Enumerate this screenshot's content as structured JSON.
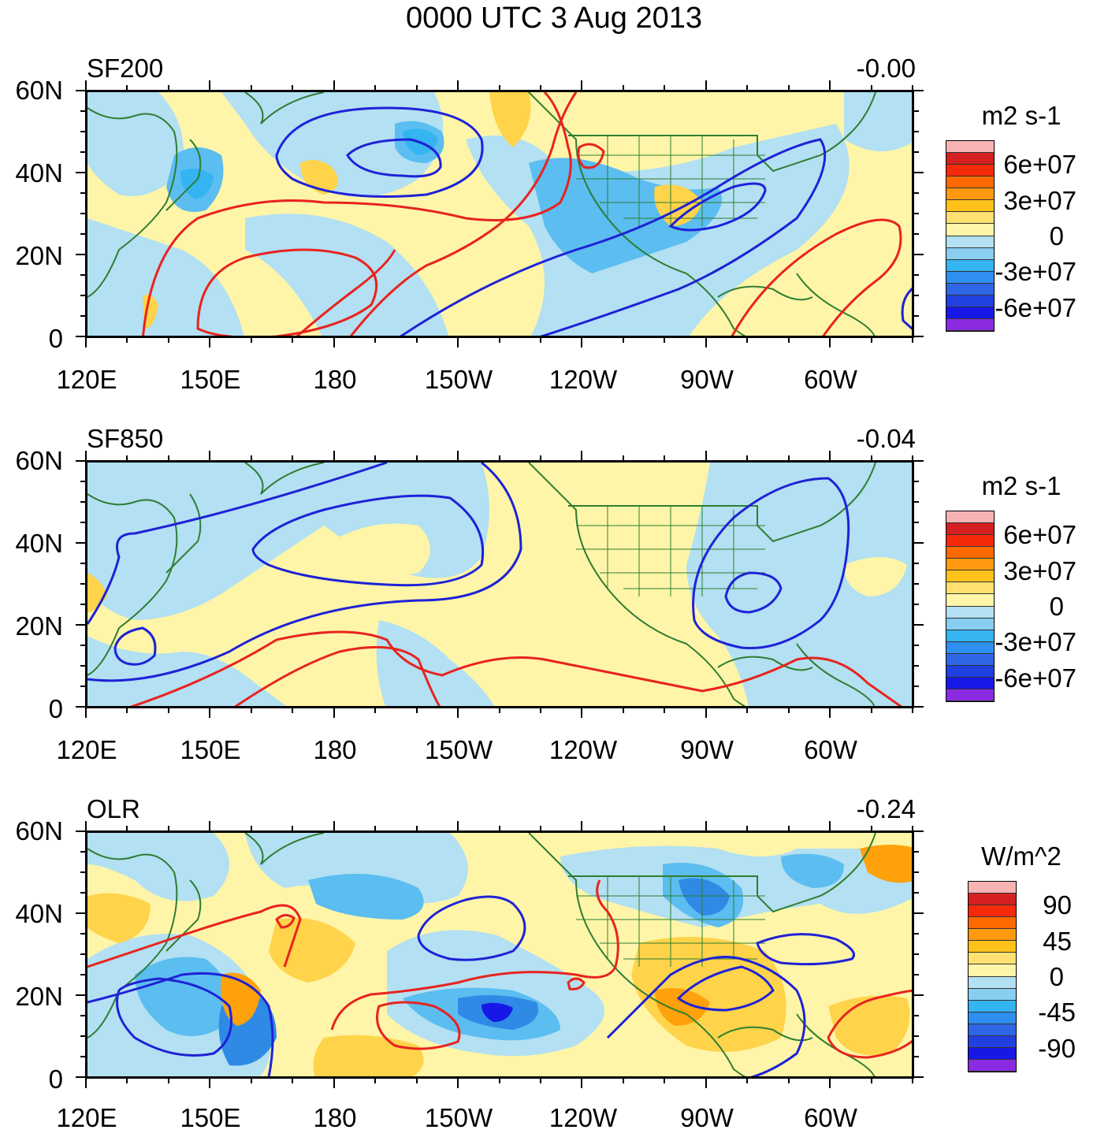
{
  "title": "0000 UTC 3 Aug 2013",
  "colors": {
    "land": "#2e7d32",
    "positive_contour": "#e8231f",
    "negative_contour": "#1e22d6",
    "pale_yellow": "#fff5a8",
    "yellow": "#ffd34a",
    "orange": "#ffa10a",
    "pale_blue": "#b3e0f2",
    "blue": "#5bbdf0",
    "mid_blue": "#2f8ae6",
    "dark_blue": "#2a55e0"
  },
  "panels": [
    {
      "id": "sf200",
      "label": "SF200",
      "value": "-0.00",
      "ylabels": [
        "60N",
        "40N",
        "20N",
        "0"
      ],
      "xlabels": [
        "120E",
        "150E",
        "180",
        "150W",
        "120W",
        "90W",
        "60W"
      ],
      "colorbar": {
        "title": "m2 s-1",
        "labels": [
          "6e+07",
          "3e+07",
          "0",
          "-3e+07",
          "-6e+07"
        ],
        "colors": [
          "#f7b3b3",
          "#d42020",
          "#f52a0a",
          "#ff6a00",
          "#ff9a10",
          "#ffc21a",
          "#ffe070",
          "#fff5a8",
          "#b3e0f2",
          "#87cef0",
          "#34b4f0",
          "#2e8ff0",
          "#2f66e6",
          "#2040e0",
          "#1818e6",
          "#8a2be2"
        ]
      }
    },
    {
      "id": "sf850",
      "label": "SF850",
      "value": "-0.04",
      "ylabels": [
        "60N",
        "40N",
        "20N",
        "0"
      ],
      "xlabels": [
        "120E",
        "150E",
        "180",
        "150W",
        "120W",
        "90W",
        "60W"
      ],
      "colorbar": {
        "title": "m2 s-1",
        "labels": [
          "6e+07",
          "3e+07",
          "0",
          "-3e+07",
          "-6e+07"
        ],
        "colors": [
          "#f7b3b3",
          "#d42020",
          "#f52a0a",
          "#ff6a00",
          "#ff9a10",
          "#ffc21a",
          "#ffe070",
          "#fff5a8",
          "#b3e0f2",
          "#87cef0",
          "#34b4f0",
          "#2e8ff0",
          "#2f66e6",
          "#2040e0",
          "#1818e6",
          "#8a2be2"
        ]
      }
    },
    {
      "id": "olr",
      "label": "OLR",
      "value": "-0.24",
      "ylabels": [
        "60N",
        "40N",
        "20N",
        "0"
      ],
      "xlabels": [
        "120E",
        "150E",
        "180",
        "150W",
        "120W",
        "90W",
        "60W"
      ],
      "colorbar": {
        "title": "W/m^2",
        "labels": [
          "90",
          "45",
          "0",
          "-45",
          "-90"
        ],
        "colors": [
          "#f7b3b3",
          "#d42020",
          "#f52a0a",
          "#ff6a00",
          "#ff9a10",
          "#ffc21a",
          "#ffe070",
          "#fff5a8",
          "#b3e0f2",
          "#87cef0",
          "#34b4f0",
          "#2e8ff0",
          "#2f66e6",
          "#2040e0",
          "#1818e6",
          "#8a2be2"
        ]
      }
    }
  ]
}
